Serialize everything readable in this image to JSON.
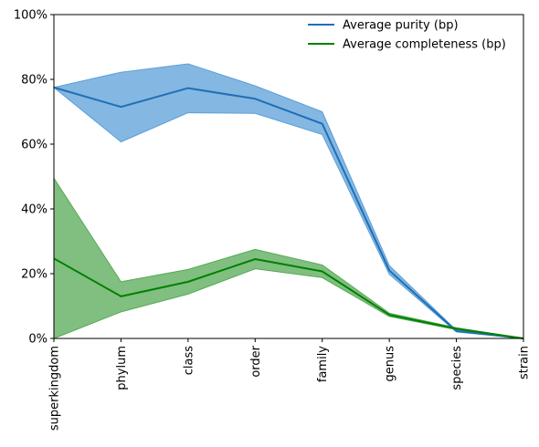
{
  "chart_data": {
    "type": "line",
    "categories": [
      "superkingdom",
      "phylum",
      "class",
      "order",
      "family",
      "genus",
      "species",
      "strain"
    ],
    "series": [
      {
        "name": "Average purity (bp)",
        "color": "#1f6fb5",
        "band_color": "#5b9fd8",
        "values": [
          77.5,
          71.5,
          77.3,
          74.0,
          66.3,
          21.0,
          2.3,
          0.0
        ],
        "upper": [
          77.5,
          82.2,
          84.8,
          78.0,
          70.0,
          22.5,
          2.5,
          0.0
        ],
        "lower": [
          77.5,
          60.7,
          69.7,
          69.5,
          63.0,
          19.8,
          2.0,
          0.0
        ]
      },
      {
        "name": "Average completeness (bp)",
        "color": "#008000",
        "band_color": "#55aa55",
        "values": [
          24.7,
          13.0,
          17.5,
          24.5,
          20.7,
          7.3,
          3.0,
          0.0
        ],
        "upper": [
          49.5,
          17.5,
          21.3,
          27.5,
          22.7,
          7.8,
          3.3,
          0.0
        ],
        "lower": [
          0.0,
          8.2,
          13.7,
          21.5,
          18.8,
          6.8,
          2.7,
          0.0
        ]
      }
    ],
    "ylim": [
      0,
      100
    ],
    "yticks": [
      "0%",
      "20%",
      "40%",
      "60%",
      "80%",
      "100%"
    ],
    "ytick_values": [
      0,
      20,
      40,
      60,
      80,
      100
    ],
    "grid": false,
    "legend": "top-right"
  }
}
